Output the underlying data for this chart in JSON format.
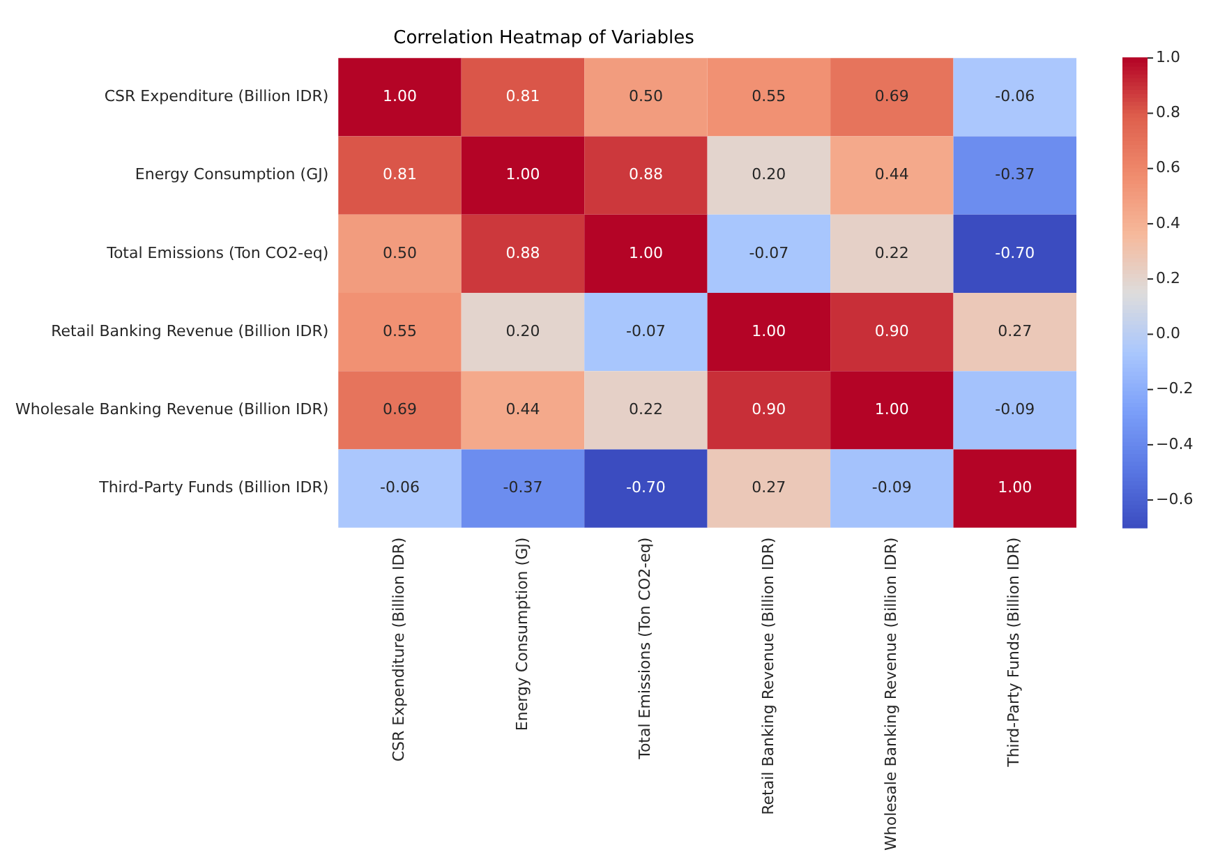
{
  "chart_data": {
    "type": "heatmap",
    "title": "Correlation Heatmap of Variables",
    "categories": [
      "CSR Expenditure (Billion IDR)",
      "Energy Consumption (GJ)",
      "Total Emissions (Ton CO2-eq)",
      "Retail Banking Revenue (Billion IDR)",
      "Wholesale Banking Revenue (Billion IDR)",
      "Third-Party Funds (Billion IDR)"
    ],
    "y_categories": [
      "CSR Expenditure (Billion IDR)",
      "Energy Consumption (GJ)",
      "Total Emissions (Ton CO2-eq)",
      "Retail Banking Revenue (Billion IDR)",
      "Wholesale Banking Revenue (Billion IDR)",
      "Third-Party Funds (Billion IDR)"
    ],
    "cells": [
      [
        1.0,
        0.81,
        0.5,
        0.55,
        0.69,
        -0.06
      ],
      [
        0.81,
        1.0,
        0.88,
        0.2,
        0.44,
        -0.37
      ],
      [
        0.5,
        0.88,
        1.0,
        -0.07,
        0.22,
        -0.7
      ],
      [
        0.55,
        0.2,
        -0.07,
        1.0,
        0.9,
        0.27
      ],
      [
        0.69,
        0.44,
        0.22,
        0.9,
        1.0,
        -0.09
      ],
      [
        -0.06,
        -0.37,
        -0.7,
        0.27,
        -0.09,
        1.0
      ]
    ],
    "cell_labels": [
      [
        "1.00",
        "0.81",
        "0.50",
        "0.55",
        "0.69",
        "-0.06"
      ],
      [
        "0.81",
        "1.00",
        "0.88",
        "0.20",
        "0.44",
        "-0.37"
      ],
      [
        "0.50",
        "0.88",
        "1.00",
        "-0.07",
        "0.22",
        "-0.70"
      ],
      [
        "0.55",
        "0.20",
        "-0.07",
        "1.00",
        "0.90",
        "0.27"
      ],
      [
        "0.69",
        "0.44",
        "0.22",
        "0.90",
        "1.00",
        "-0.09"
      ],
      [
        "-0.06",
        "-0.37",
        "-0.70",
        "0.27",
        "-0.09",
        "1.00"
      ]
    ],
    "data_labels": true,
    "clim": [
      -0.7,
      1.0
    ],
    "cticks": [
      {
        "value": -0.6,
        "label": "−0.6"
      },
      {
        "value": -0.4,
        "label": "−0.4"
      },
      {
        "value": -0.2,
        "label": "−0.2"
      },
      {
        "value": 0.0,
        "label": "0.0"
      },
      {
        "value": 0.2,
        "label": "0.2"
      },
      {
        "value": 0.4,
        "label": "0.4"
      },
      {
        "value": 0.6,
        "label": "0.6"
      },
      {
        "value": 0.8,
        "label": "0.8"
      },
      {
        "value": 1.0,
        "label": "1.0"
      }
    ]
  }
}
